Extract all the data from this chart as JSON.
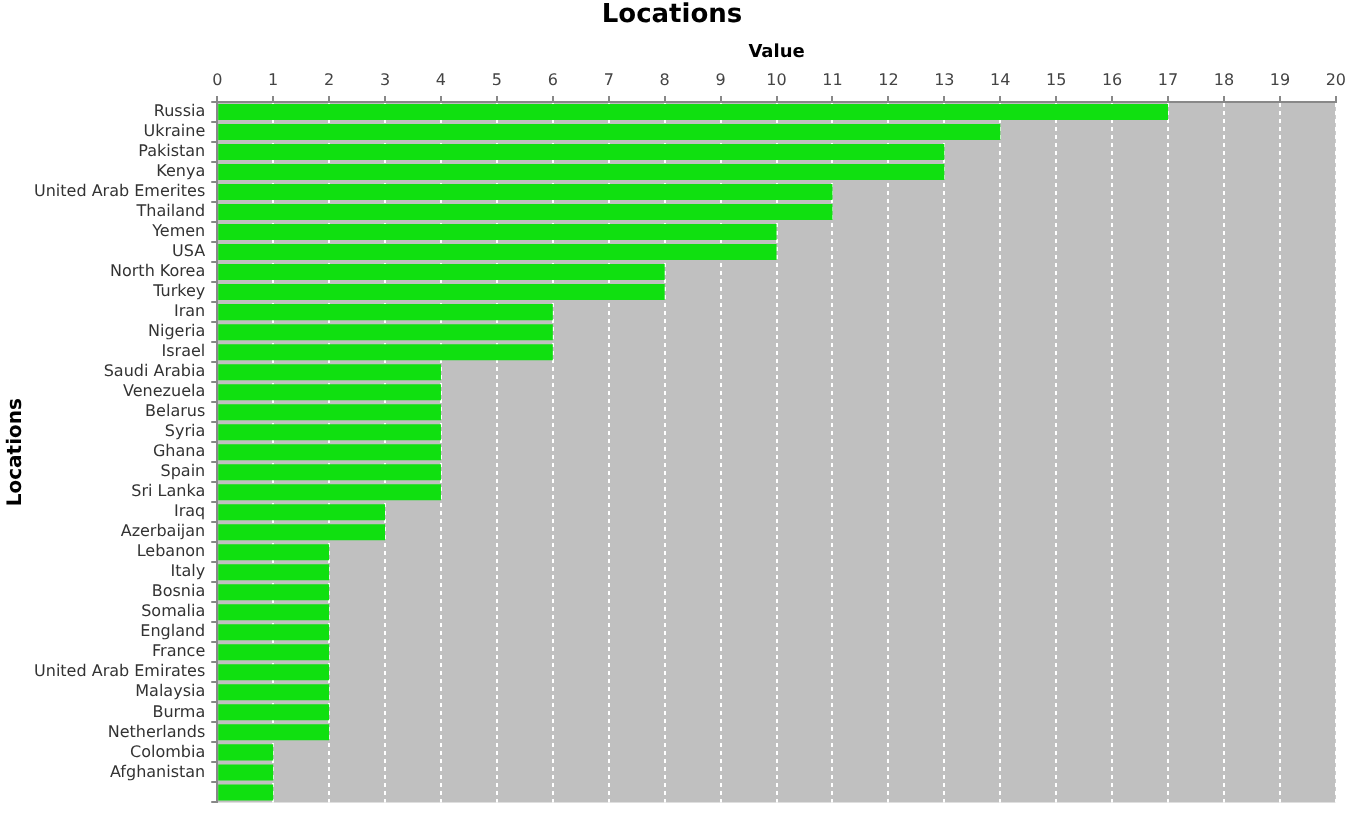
{
  "chart_data": {
    "type": "bar",
    "orientation": "horizontal",
    "title": "Locations",
    "xlabel": "Value",
    "ylabel": "Locations",
    "categories": [
      "Russia",
      "Ukraine",
      "Pakistan",
      "Kenya",
      "United Arab Emerites",
      "Thailand",
      "Yemen",
      "USA",
      "North Korea",
      "Turkey",
      "Iran",
      "Nigeria",
      "Israel",
      "Saudi Arabia",
      "Venezuela",
      "Belarus",
      "Syria",
      "Ghana",
      "Spain",
      "Sri Lanka",
      "Iraq",
      "Azerbaijan",
      "Lebanon",
      "Italy",
      "Bosnia",
      "Somalia",
      "England",
      "France",
      "United Arab Emirates",
      "Malaysia",
      "Burma",
      "Netherlands",
      "Colombia",
      "Afghanistan",
      null
    ],
    "values": [
      17,
      14,
      13,
      13,
      11,
      11,
      10,
      10,
      8,
      8,
      6,
      6,
      6,
      4,
      4,
      4,
      4,
      4,
      4,
      4,
      3,
      3,
      2,
      2,
      2,
      2,
      2,
      2,
      2,
      2,
      2,
      2,
      1,
      1,
      1
    ],
    "color": "#10e010",
    "xlim": [
      0,
      20
    ],
    "xticks": [
      0,
      1,
      2,
      3,
      4,
      5,
      6,
      7,
      8,
      9,
      10,
      11,
      12,
      13,
      14,
      15,
      16,
      17,
      18,
      19,
      20
    ],
    "grid": "x",
    "legend": false
  }
}
